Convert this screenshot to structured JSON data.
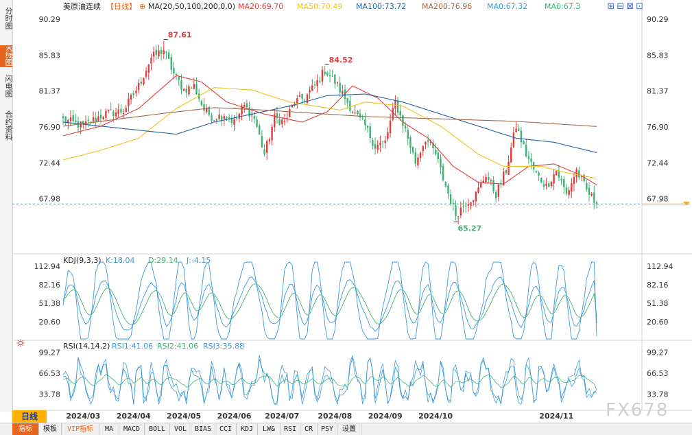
{
  "sidebar": {
    "tabs": [
      {
        "label": "分时图",
        "active": false
      },
      {
        "label": "K线图",
        "active": true
      },
      {
        "label": "闪电图",
        "active": false
      },
      {
        "label": "合约资料",
        "active": false
      }
    ]
  },
  "header": {
    "symbol": "美原油连续",
    "period": "【日线】",
    "add_icon": "⊕",
    "ma_label": "MA(20,50,100,200,0,0)",
    "indicators": [
      {
        "label": "MA20:69.70",
        "color": "#e23b3b"
      },
      {
        "label": "MA50:70.49",
        "color": "#f2c21a"
      },
      {
        "label": "MA100:73.72",
        "color": "#1f5fa8"
      },
      {
        "label": "MA200:76.96",
        "color": "#a0674b"
      },
      {
        "label": "MA0:67.32",
        "color": "#3a9ad9"
      },
      {
        "label": "MA0:67.3",
        "color": "#3cb371"
      }
    ],
    "window_icons": "⊞⊟⊠⊡"
  },
  "kdj_header": {
    "label": "KDJ(9,3,3)",
    "values": [
      {
        "label": "K:18.04",
        "color": "#3a9ad9"
      },
      {
        "label": "D:29.14",
        "color": "#3cb371"
      },
      {
        "label": "J:-4.15",
        "color": "#3a9ad9"
      }
    ]
  },
  "rsi_header": {
    "icon": "sun-icon",
    "label": "RSI(14,14,2)",
    "values": [
      {
        "label": "RSI1:41.06",
        "color": "#3a9ad9"
      },
      {
        "label": "RSI2:41.06",
        "color": "#3cb371"
      },
      {
        "label": "RSI3:35.88",
        "color": "#3a9ad9"
      }
    ]
  },
  "bottom": {
    "period_button": "日线",
    "watermark": "FX678",
    "toolbar": [
      "指标",
      "模板",
      "VIP指标",
      "MA",
      "MACD",
      "BOLL",
      "VOL",
      "BIAS",
      "CCI",
      "KDJ",
      "LW&",
      "RSI",
      "CR",
      "PSY",
      "设置"
    ]
  },
  "chart_data": [
    {
      "type": "candlestick",
      "title": "美原油连续 日线",
      "y_ticks": [
        90.29,
        85.83,
        81.37,
        76.9,
        72.44,
        67.98
      ],
      "ylim": [
        63.5,
        91.5
      ],
      "x_ticks": [
        "2024/03",
        "2024/04",
        "2024/05",
        "2024/06",
        "2024/07",
        "2024/08",
        "2024/09",
        "2024/10",
        "2024/11"
      ],
      "annotations": [
        {
          "label": "87.61",
          "value": 87.61,
          "color": "#e23b3b",
          "type": "high"
        },
        {
          "label": "84.52",
          "value": 84.52,
          "color": "#e23b3b",
          "type": "high"
        },
        {
          "label": "65.27",
          "value": 65.27,
          "color": "#3cb371",
          "type": "low"
        }
      ],
      "last_price": 67.32,
      "close_anchors": [
        [
          0,
          77.8
        ],
        [
          8,
          77.0
        ],
        [
          16,
          78.5
        ],
        [
          24,
          78.9
        ],
        [
          30,
          82.0
        ],
        [
          35,
          85.5
        ],
        [
          40,
          86.5
        ],
        [
          44,
          83.5
        ],
        [
          48,
          81.5
        ],
        [
          52,
          82.0
        ],
        [
          56,
          79.0
        ],
        [
          60,
          78.0
        ],
        [
          64,
          78.5
        ],
        [
          68,
          77.5
        ],
        [
          72,
          79.5
        ],
        [
          76,
          78.0
        ],
        [
          80,
          73.5
        ],
        [
          84,
          78.0
        ],
        [
          88,
          77.5
        ],
        [
          92,
          80.0
        ],
        [
          96,
          80.5
        ],
        [
          100,
          82.0
        ],
        [
          104,
          84.0
        ],
        [
          108,
          82.5
        ],
        [
          112,
          80.5
        ],
        [
          116,
          78.5
        ],
        [
          120,
          77.0
        ],
        [
          124,
          74.5
        ],
        [
          128,
          75.0
        ],
        [
          132,
          80.0
        ],
        [
          136,
          76.5
        ],
        [
          140,
          72.5
        ],
        [
          144,
          75.5
        ],
        [
          148,
          73.5
        ],
        [
          152,
          69.5
        ],
        [
          156,
          66.0
        ],
        [
          160,
          67.5
        ],
        [
          164,
          68.5
        ],
        [
          168,
          71.0
        ],
        [
          172,
          68.5
        ],
        [
          176,
          71.5
        ],
        [
          180,
          77.0
        ],
        [
          184,
          73.5
        ],
        [
          188,
          71.0
        ],
        [
          192,
          69.5
        ],
        [
          196,
          71.5
        ],
        [
          200,
          68.5
        ],
        [
          204,
          71.5
        ],
        [
          208,
          69.0
        ],
        [
          212,
          67.3
        ]
      ],
      "series": [
        {
          "name": "MA20",
          "color": "#e23b3b",
          "anchors": [
            [
              0,
              75.8
            ],
            [
              15,
              77.0
            ],
            [
              30,
              79.2
            ],
            [
              45,
              83.3
            ],
            [
              55,
              82.5
            ],
            [
              65,
              80.0
            ],
            [
              80,
              78.5
            ],
            [
              95,
              77.5
            ],
            [
              105,
              78.8
            ],
            [
              115,
              82.0
            ],
            [
              125,
              80.5
            ],
            [
              135,
              77.5
            ],
            [
              145,
              75.5
            ],
            [
              155,
              72.0
            ],
            [
              165,
              70.0
            ],
            [
              175,
              69.8
            ],
            [
              185,
              72.0
            ],
            [
              195,
              72.3
            ],
            [
              205,
              71.0
            ],
            [
              212,
              69.7
            ]
          ]
        },
        {
          "name": "MA50",
          "color": "#f2c21a",
          "anchors": [
            [
              0,
              72.8
            ],
            [
              15,
              74.0
            ],
            [
              30,
              75.5
            ],
            [
              45,
              79.2
            ],
            [
              60,
              81.8
            ],
            [
              75,
              81.5
            ],
            [
              90,
              80.0
            ],
            [
              110,
              79.0
            ],
            [
              120,
              80.0
            ],
            [
              135,
              79.5
            ],
            [
              150,
              77.0
            ],
            [
              165,
              73.5
            ],
            [
              175,
              72.0
            ],
            [
              190,
              72.0
            ],
            [
              200,
              71.2
            ],
            [
              212,
              70.5
            ]
          ]
        },
        {
          "name": "MA100",
          "color": "#1f5fa8",
          "anchors": [
            [
              0,
              77.5
            ],
            [
              15,
              77.0
            ],
            [
              30,
              76.5
            ],
            [
              45,
              76.0
            ],
            [
              60,
              77.5
            ],
            [
              75,
              78.5
            ],
            [
              90,
              79.5
            ],
            [
              105,
              80.8
            ],
            [
              120,
              81.0
            ],
            [
              135,
              80.0
            ],
            [
              150,
              78.5
            ],
            [
              165,
              77.0
            ],
            [
              180,
              75.5
            ],
            [
              195,
              75.0
            ],
            [
              212,
              73.7
            ]
          ]
        },
        {
          "name": "MA200",
          "color": "#a0674b",
          "anchors": [
            [
              0,
              77.0
            ],
            [
              20,
              77.8
            ],
            [
              40,
              78.6
            ],
            [
              60,
              79.3
            ],
            [
              80,
              79.0
            ],
            [
              100,
              78.6
            ],
            [
              120,
              78.2
            ],
            [
              140,
              78.0
            ],
            [
              160,
              77.8
            ],
            [
              180,
              77.6
            ],
            [
              195,
              77.3
            ],
            [
              212,
              76.96
            ]
          ]
        }
      ]
    },
    {
      "type": "line",
      "title": "KDJ(9,3,3)",
      "y_ticks": [
        112.94,
        82.16,
        51.38,
        20.6
      ],
      "ylim": [
        -8,
        120
      ],
      "series": [
        {
          "name": "K",
          "color": "#3a9ad9",
          "last": 18.04
        },
        {
          "name": "D",
          "color": "#3cb371",
          "last": 29.14
        },
        {
          "name": "J",
          "color": "#3a9ad9",
          "last": -4.15
        }
      ]
    },
    {
      "type": "line",
      "title": "RSI(14,14,2)",
      "y_ticks": [
        99.27,
        66.53,
        33.78
      ],
      "ylim": [
        15,
        105
      ],
      "series": [
        {
          "name": "RSI1",
          "color": "#3a9ad9",
          "last": 41.06
        },
        {
          "name": "RSI2",
          "color": "#3cb371",
          "last": 41.06
        },
        {
          "name": "RSI3",
          "color": "#3a9ad9",
          "last": 35.88
        }
      ]
    }
  ]
}
